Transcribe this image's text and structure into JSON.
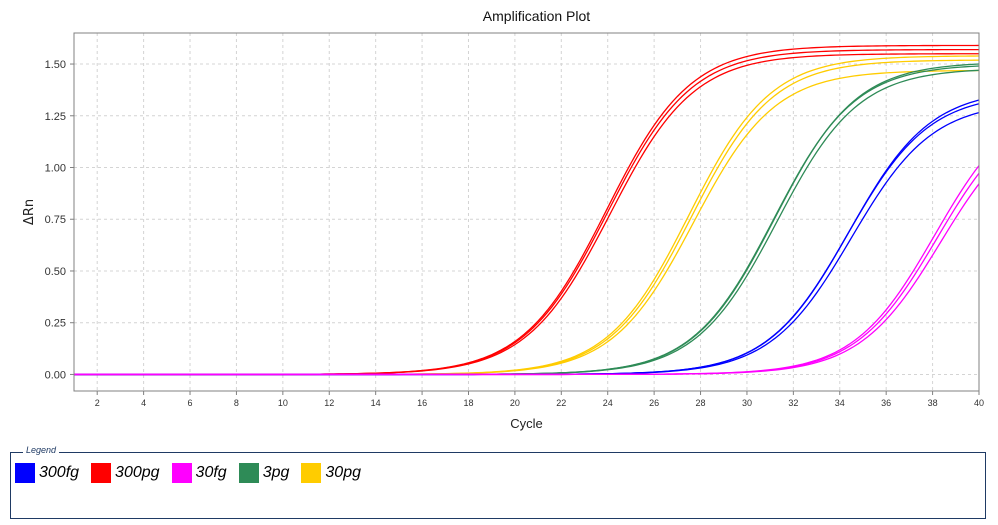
{
  "chart_data": {
    "type": "line",
    "title": "Amplification Plot",
    "xlabel": "Cycle",
    "ylabel": "ΔRn",
    "xlim": [
      1,
      40
    ],
    "ylim": [
      -0.08,
      1.65
    ],
    "xticks": [
      2,
      4,
      6,
      8,
      10,
      12,
      14,
      16,
      18,
      20,
      22,
      24,
      26,
      28,
      30,
      32,
      34,
      36,
      38,
      40
    ],
    "yticks": [
      0.0,
      0.25,
      0.5,
      0.75,
      1.0,
      1.25,
      1.5
    ],
    "ytick_labels": [
      "0.00",
      "0.25",
      "0.50",
      "0.75",
      "1.00",
      "1.25",
      "1.50"
    ],
    "grid": true,
    "legend_title": "Legend",
    "legend_placement": "bottom",
    "legend": [
      {
        "name": "300fg",
        "color": "#0000ff"
      },
      {
        "name": "300pg",
        "color": "#ff0000"
      },
      {
        "name": "30fg",
        "color": "#ff00ff"
      },
      {
        "name": "3pg",
        "color": "#2e8b57"
      },
      {
        "name": "30pg",
        "color": "#ffcc00"
      }
    ],
    "series": [
      {
        "name": "300pg",
        "color": "#ff0000",
        "replicates": [
          {
            "plateau": 1.57,
            "midpoint": 24.0,
            "slope": 1.8
          },
          {
            "plateau": 1.55,
            "midpoint": 24.1,
            "slope": 1.8
          },
          {
            "plateau": 1.59,
            "midpoint": 23.95,
            "slope": 1.8
          }
        ]
      },
      {
        "name": "30pg",
        "color": "#ffcc00",
        "replicates": [
          {
            "plateau": 1.52,
            "midpoint": 27.6,
            "slope": 1.75
          },
          {
            "plateau": 1.47,
            "midpoint": 27.7,
            "slope": 1.75
          },
          {
            "plateau": 1.54,
            "midpoint": 27.5,
            "slope": 1.75
          }
        ]
      },
      {
        "name": "3pg",
        "color": "#2e8b57",
        "replicates": [
          {
            "plateau": 1.51,
            "midpoint": 31.2,
            "slope": 1.75
          },
          {
            "plateau": 1.48,
            "midpoint": 31.3,
            "slope": 1.75
          },
          {
            "plateau": 1.5,
            "midpoint": 31.15,
            "slope": 1.75
          }
        ]
      },
      {
        "name": "300fg",
        "color": "#0000ff",
        "replicates": [
          {
            "plateau": 1.38,
            "midpoint": 34.4,
            "slope": 1.75
          },
          {
            "plateau": 1.32,
            "midpoint": 34.5,
            "slope": 1.75
          },
          {
            "plateau": 1.36,
            "midpoint": 34.35,
            "slope": 1.75
          }
        ]
      },
      {
        "name": "30fg",
        "color": "#ff00ff",
        "replicates": [
          {
            "plateau": 1.32,
            "midpoint": 38.2,
            "slope": 1.75
          },
          {
            "plateau": 1.28,
            "midpoint": 38.35,
            "slope": 1.75
          },
          {
            "plateau": 1.35,
            "midpoint": 38.1,
            "slope": 1.75
          }
        ]
      }
    ]
  }
}
